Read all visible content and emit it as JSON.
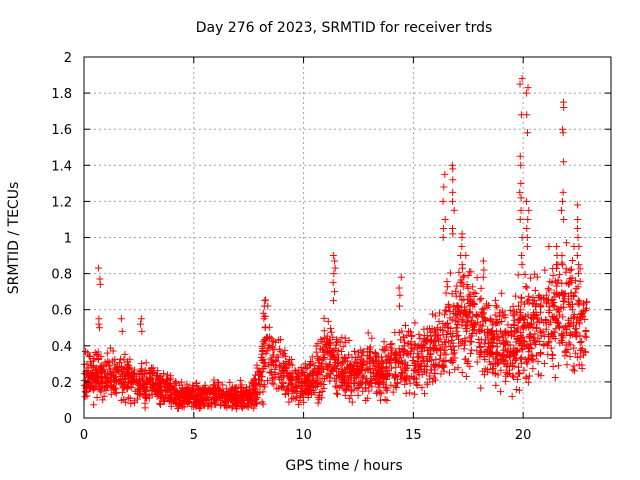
{
  "chart_data": {
    "type": "scatter",
    "title": "Day 276 of 2023, SRMTID for receiver trds",
    "xlabel": "GPS time / hours",
    "ylabel": "SRMTID / TECUs",
    "xlim": [
      0,
      24
    ],
    "ylim": [
      0,
      2
    ],
    "x_ticks": [
      0,
      5,
      10,
      15,
      20
    ],
    "x_tick_labels": [
      "0",
      "5",
      "10",
      "15",
      "20"
    ],
    "y_ticks": [
      0,
      0.2,
      0.4,
      0.6,
      0.8,
      1,
      1.2,
      1.4,
      1.6,
      1.8,
      2
    ],
    "y_tick_labels": [
      "0",
      "0.2",
      "0.4",
      "0.6",
      "0.8",
      "1",
      "1.2",
      "1.4",
      "1.6",
      "1.8",
      "2"
    ],
    "grid": true,
    "marker": "+",
    "color": "#ff0000",
    "series": [
      {
        "name": "SRMTID",
        "profile": {
          "x": [
            0,
            0.5,
            1,
            1.5,
            2,
            2.5,
            3,
            3.5,
            4,
            4.5,
            5,
            5.5,
            6,
            6.5,
            7,
            7.5,
            8,
            8.3,
            8.6,
            9,
            9.5,
            10,
            10.5,
            11,
            11.5,
            12,
            12.5,
            13,
            13.5,
            14,
            14.5,
            15,
            15.5,
            16,
            16.5,
            17,
            17.5,
            18,
            18.5,
            19,
            19.5,
            20,
            20.5,
            21,
            21.5,
            22,
            22.5,
            22.9
          ],
          "y": [
            0.22,
            0.25,
            0.22,
            0.24,
            0.22,
            0.2,
            0.2,
            0.16,
            0.14,
            0.12,
            0.12,
            0.12,
            0.13,
            0.12,
            0.12,
            0.12,
            0.2,
            0.42,
            0.3,
            0.25,
            0.2,
            0.18,
            0.22,
            0.35,
            0.3,
            0.25,
            0.25,
            0.27,
            0.25,
            0.28,
            0.3,
            0.32,
            0.35,
            0.38,
            0.45,
            0.55,
            0.55,
            0.52,
            0.45,
            0.4,
            0.42,
            0.48,
            0.48,
            0.55,
            0.6,
            0.6,
            0.55,
            0.5
          ]
        },
        "spikes": [
          {
            "x": 0.7,
            "values": [
              0.83,
              0.77,
              0.74,
              0.55,
              0.52,
              0.5
            ]
          },
          {
            "x": 1.7,
            "values": [
              0.55,
              0.48
            ]
          },
          {
            "x": 2.6,
            "values": [
              0.55,
              0.52,
              0.48
            ]
          },
          {
            "x": 8.2,
            "values": [
              0.65,
              0.62,
              0.58,
              0.55,
              0.5
            ]
          },
          {
            "x": 11.4,
            "values": [
              0.9,
              0.87,
              0.83,
              0.8,
              0.75,
              0.7,
              0.65
            ]
          },
          {
            "x": 14.4,
            "values": [
              0.78,
              0.72,
              0.68,
              0.62
            ]
          },
          {
            "x": 16.4,
            "values": [
              1.35,
              1.28,
              1.2,
              1.1,
              1.05,
              1.0
            ]
          },
          {
            "x": 16.8,
            "values": [
              1.4,
              1.38,
              1.32,
              1.25,
              1.2,
              1.15,
              1.05,
              1.02
            ]
          },
          {
            "x": 17.2,
            "values": [
              1.02,
              1.0,
              0.95,
              0.9,
              0.85
            ]
          },
          {
            "x": 18.2,
            "values": [
              0.87,
              0.82,
              0.78
            ]
          },
          {
            "x": 19.9,
            "values": [
              1.88,
              1.85,
              1.68,
              1.45,
              1.4,
              1.3,
              1.25,
              1.22,
              1.15,
              1.1,
              1.0,
              0.9,
              0.85
            ]
          },
          {
            "x": 20.2,
            "values": [
              1.83,
              1.8,
              1.68,
              1.58,
              1.2,
              1.15,
              1.1,
              1.05,
              1.0,
              0.95
            ]
          },
          {
            "x": 21.5,
            "values": [
              0.95,
              0.9,
              0.85
            ]
          },
          {
            "x": 21.8,
            "values": [
              1.75,
              1.72,
              1.6,
              1.58,
              1.42,
              1.25,
              1.2,
              1.15,
              1.1,
              0.9,
              0.85
            ]
          },
          {
            "x": 22.5,
            "values": [
              1.18,
              1.1,
              1.05,
              1.0,
              0.95,
              0.9,
              0.85,
              0.8
            ]
          }
        ]
      }
    ]
  }
}
